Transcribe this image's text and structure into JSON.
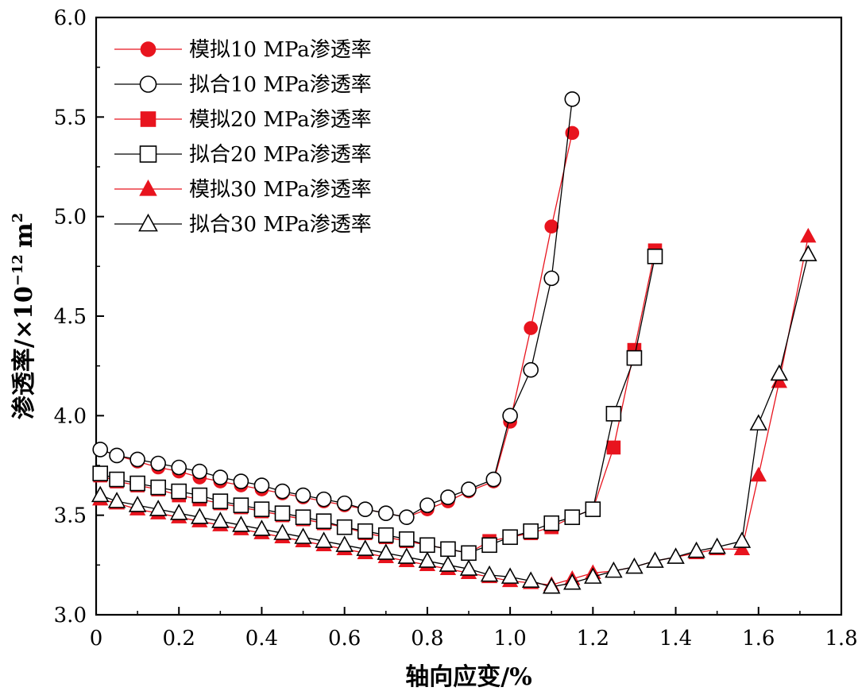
{
  "chart_data": {
    "type": "line",
    "xlabel": "轴向应变/%",
    "ylabel_main": "渗透率/×10",
    "ylabel_exp": "−12",
    "ylabel_unit": "m",
    "ylabel_unit_exp": "2",
    "xlim": [
      0,
      1.8
    ],
    "ylim": [
      3.0,
      6.0
    ],
    "xticks": [
      0,
      0.2,
      0.4,
      0.6,
      0.8,
      1.0,
      1.2,
      1.4,
      1.6,
      1.8
    ],
    "xtick_labels": [
      "0",
      "0.2",
      "0.4",
      "0.6",
      "0.8",
      "1.0",
      "1.2",
      "1.4",
      "1.6",
      "1.8"
    ],
    "yticks": [
      3.0,
      3.5,
      4.0,
      4.5,
      5.0,
      5.5,
      6.0
    ],
    "ytick_labels": [
      "3.0",
      "3.5",
      "4.0",
      "4.5",
      "5.0",
      "5.5",
      "6.0"
    ],
    "legend_position": "top-left",
    "series": [
      {
        "name": "模拟10 MPa渗透率",
        "marker": "circle",
        "filled": true,
        "color": "#e8141e",
        "line_color": "#e8141e",
        "x": [
          0.01,
          0.05,
          0.1,
          0.15,
          0.2,
          0.25,
          0.3,
          0.35,
          0.4,
          0.45,
          0.5,
          0.55,
          0.6,
          0.65,
          0.7,
          0.75,
          0.8,
          0.85,
          0.9,
          0.96,
          1.0,
          1.05,
          1.1,
          1.15
        ],
        "y": [
          3.83,
          3.8,
          3.77,
          3.74,
          3.72,
          3.69,
          3.67,
          3.65,
          3.63,
          3.61,
          3.59,
          3.57,
          3.55,
          3.53,
          3.51,
          3.49,
          3.53,
          3.57,
          3.62,
          3.67,
          3.97,
          4.44,
          4.95,
          5.42
        ]
      },
      {
        "name": "拟合10 MPa渗透率",
        "marker": "circle",
        "filled": false,
        "color": "#000000",
        "line_color": "#000000",
        "x": [
          0.01,
          0.05,
          0.1,
          0.15,
          0.2,
          0.25,
          0.3,
          0.35,
          0.4,
          0.45,
          0.5,
          0.55,
          0.6,
          0.65,
          0.7,
          0.75,
          0.8,
          0.85,
          0.9,
          0.96,
          1.0,
          1.05,
          1.1,
          1.15
        ],
        "y": [
          3.83,
          3.8,
          3.78,
          3.76,
          3.74,
          3.72,
          3.69,
          3.67,
          3.65,
          3.62,
          3.6,
          3.58,
          3.56,
          3.53,
          3.51,
          3.49,
          3.55,
          3.59,
          3.63,
          3.68,
          4.0,
          4.23,
          4.69,
          5.59
        ]
      },
      {
        "name": "模拟20 MPa渗透率",
        "marker": "square",
        "filled": true,
        "color": "#e8141e",
        "line_color": "#e8141e",
        "x": [
          0.01,
          0.05,
          0.1,
          0.15,
          0.2,
          0.25,
          0.3,
          0.35,
          0.4,
          0.45,
          0.5,
          0.55,
          0.6,
          0.65,
          0.7,
          0.75,
          0.8,
          0.85,
          0.9,
          0.95,
          1.0,
          1.05,
          1.1,
          1.15,
          1.2,
          1.25,
          1.3,
          1.35
        ],
        "y": [
          3.7,
          3.67,
          3.65,
          3.63,
          3.6,
          3.58,
          3.56,
          3.54,
          3.52,
          3.5,
          3.48,
          3.46,
          3.44,
          3.41,
          3.39,
          3.37,
          3.35,
          3.33,
          3.31,
          3.37,
          3.39,
          3.41,
          3.44,
          3.49,
          3.53,
          3.84,
          4.33,
          4.83
        ]
      },
      {
        "name": "拟合20 MPa渗透率",
        "marker": "square",
        "filled": false,
        "color": "#000000",
        "line_color": "#000000",
        "x": [
          0.01,
          0.05,
          0.1,
          0.15,
          0.2,
          0.25,
          0.3,
          0.35,
          0.4,
          0.45,
          0.5,
          0.55,
          0.6,
          0.65,
          0.7,
          0.75,
          0.8,
          0.85,
          0.9,
          0.95,
          1.0,
          1.05,
          1.1,
          1.15,
          1.2,
          1.25,
          1.3,
          1.35
        ],
        "y": [
          3.71,
          3.68,
          3.66,
          3.64,
          3.62,
          3.6,
          3.57,
          3.55,
          3.53,
          3.51,
          3.49,
          3.47,
          3.44,
          3.42,
          3.4,
          3.38,
          3.35,
          3.33,
          3.31,
          3.35,
          3.39,
          3.42,
          3.46,
          3.49,
          3.53,
          4.01,
          4.29,
          4.8
        ]
      },
      {
        "name": "模拟30 MPa渗透率",
        "marker": "triangle",
        "filled": true,
        "color": "#e8141e",
        "line_color": "#e8141e",
        "x": [
          0.01,
          0.05,
          0.1,
          0.15,
          0.2,
          0.25,
          0.3,
          0.35,
          0.4,
          0.45,
          0.5,
          0.55,
          0.6,
          0.65,
          0.7,
          0.75,
          0.8,
          0.85,
          0.9,
          0.95,
          1.0,
          1.05,
          1.1,
          1.15,
          1.2,
          1.25,
          1.3,
          1.35,
          1.4,
          1.45,
          1.5,
          1.56,
          1.6,
          1.65,
          1.72
        ],
        "y": [
          3.58,
          3.56,
          3.53,
          3.51,
          3.49,
          3.47,
          3.45,
          3.43,
          3.41,
          3.39,
          3.37,
          3.35,
          3.33,
          3.31,
          3.29,
          3.27,
          3.25,
          3.23,
          3.21,
          3.19,
          3.17,
          3.16,
          3.15,
          3.18,
          3.21,
          3.22,
          3.24,
          3.27,
          3.29,
          3.31,
          3.33,
          3.33,
          3.7,
          4.17,
          4.9
        ]
      },
      {
        "name": "拟合30 MPa渗透率",
        "marker": "triangle",
        "filled": false,
        "color": "#000000",
        "line_color": "#000000",
        "x": [
          0.01,
          0.05,
          0.1,
          0.15,
          0.2,
          0.25,
          0.3,
          0.35,
          0.4,
          0.45,
          0.5,
          0.55,
          0.6,
          0.65,
          0.7,
          0.75,
          0.8,
          0.85,
          0.9,
          0.95,
          1.0,
          1.05,
          1.1,
          1.15,
          1.2,
          1.25,
          1.3,
          1.35,
          1.4,
          1.45,
          1.5,
          1.56,
          1.6,
          1.65,
          1.72
        ],
        "y": [
          3.6,
          3.57,
          3.55,
          3.53,
          3.51,
          3.49,
          3.47,
          3.45,
          3.43,
          3.41,
          3.39,
          3.37,
          3.35,
          3.33,
          3.31,
          3.29,
          3.27,
          3.25,
          3.23,
          3.2,
          3.19,
          3.17,
          3.14,
          3.16,
          3.19,
          3.22,
          3.24,
          3.27,
          3.29,
          3.32,
          3.34,
          3.37,
          3.96,
          4.21,
          4.81
        ]
      }
    ]
  }
}
